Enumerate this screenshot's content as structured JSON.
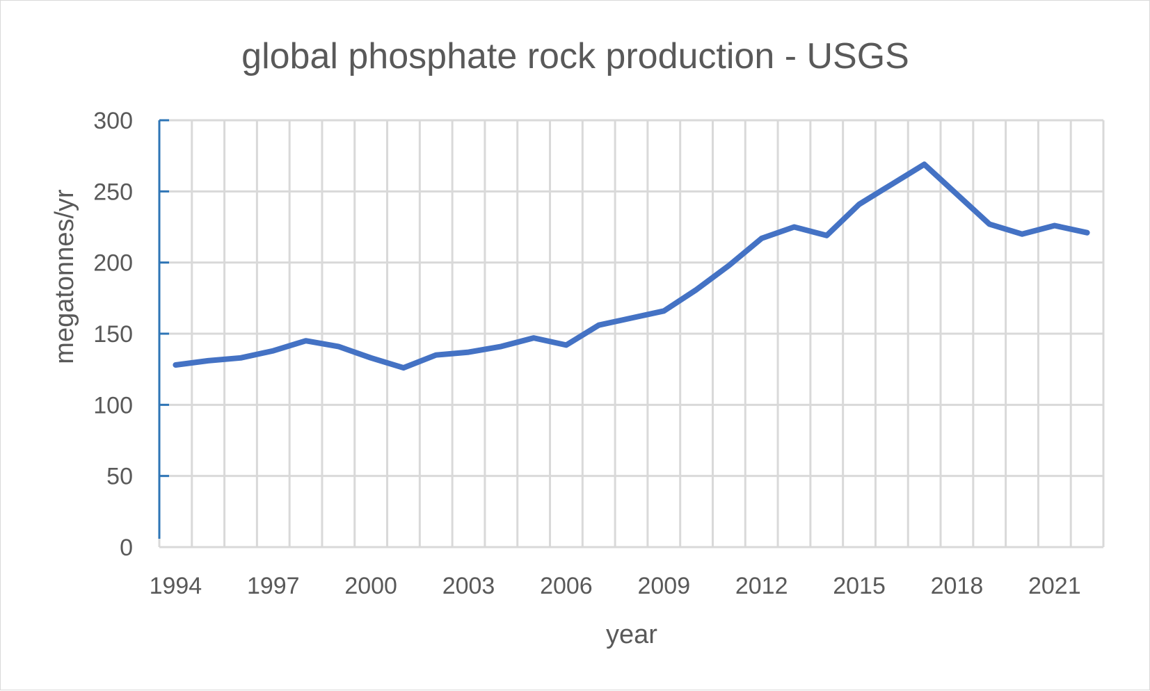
{
  "chart_data": {
    "type": "line",
    "title": "global phosphate rock production - USGS",
    "xlabel": "year",
    "ylabel": "megatonnes/yr",
    "ylim": [
      0,
      300
    ],
    "yticks": [
      0,
      50,
      100,
      150,
      200,
      250,
      300
    ],
    "xlim": [
      1994,
      2022
    ],
    "xticks": [
      1994,
      1997,
      2000,
      2003,
      2006,
      2009,
      2012,
      2015,
      2018,
      2021
    ],
    "grid": true,
    "legend": "none",
    "series": [
      {
        "color": "#4472c4",
        "x": [
          1994,
          1995,
          1996,
          1997,
          1998,
          1999,
          2000,
          2001,
          2002,
          2003,
          2004,
          2005,
          2006,
          2007,
          2008,
          2009,
          2010,
          2011,
          2012,
          2013,
          2014,
          2015,
          2016,
          2017,
          2018,
          2019,
          2020,
          2021,
          2022
        ],
        "y": [
          128,
          131,
          133,
          138,
          145,
          141,
          133,
          126,
          135,
          137,
          141,
          147,
          142,
          156,
          161,
          166,
          181,
          198,
          217,
          225,
          219,
          241,
          255,
          269,
          248,
          227,
          220,
          226,
          221
        ]
      }
    ]
  }
}
